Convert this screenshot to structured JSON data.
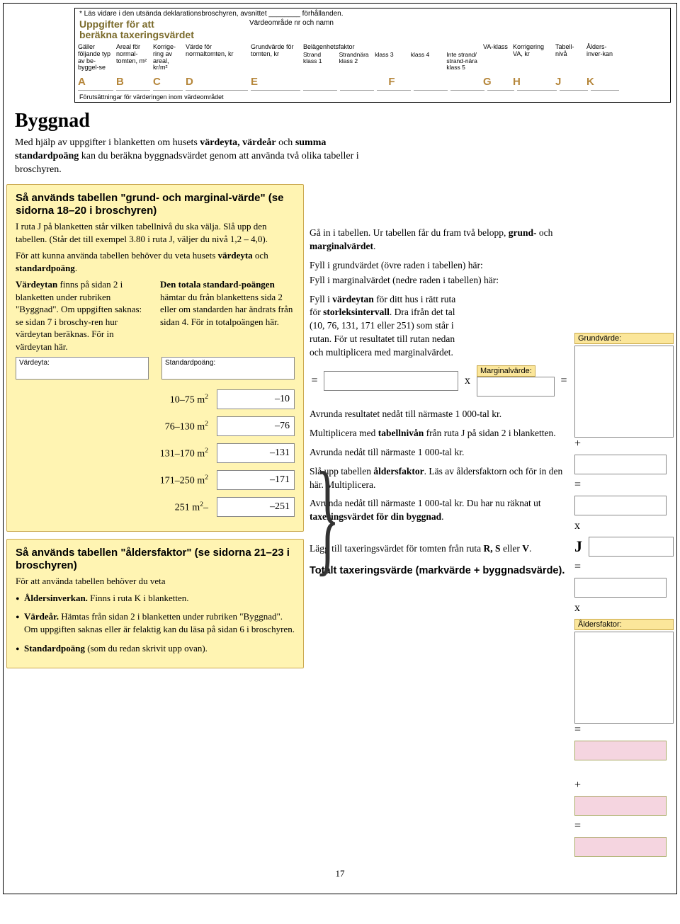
{
  "top": {
    "note": "* Läs vidare i den utsända deklarationsbroschyren, avsnittet ________ förhållanden.",
    "title_l1": "Uppgifter för att",
    "title_l2": "beräkna taxeringsvärdet",
    "vardeomrade": "Värdeområde nr och namn",
    "cols": {
      "a": "Gäller följande typ av be-byggel-se",
      "b": "Areal för normal-tomten, m²",
      "c": "Korrige-ring av areal, kr/m²",
      "d": "Värde för normaltomten, kr",
      "e": "Grundvärde för tomten, kr",
      "f_title": "Belägenhetsfaktor",
      "f1": "Strand",
      "f1b": "klass 1",
      "f2": "Strandnära",
      "f2b": "klass 2",
      "f3": "klass 3",
      "f4": "klass 4",
      "f5a": "Inte strand/ strand-nära",
      "f5b": "klass 5",
      "g": "VA-klass",
      "h": "Korrigering VA, kr",
      "j": "Tabell-nivå",
      "k": "Ålders-inver-kan"
    },
    "letters": [
      "A",
      "B",
      "C",
      "D",
      "E",
      "F",
      "G",
      "H",
      "J",
      "K"
    ],
    "footer": "Förutsättningar för värderingen inom värdeområdet"
  },
  "section_title": "Byggnad",
  "intro": "Med hjälp av uppgifter i blanketten om husets <b>värdeyta, värdeår</b> och <b>summa standardpoäng</b> kan du beräkna byggnadsvärdet genom att använda två olika tabeller i broschyren.",
  "box1": {
    "title": "Så används tabellen \"grund- och marginal-värde\" (se sidorna 18–20 i broschyren)",
    "p1": "I ruta J på blanketten står vilken tabellnivå du ska välja. Slå upp den tabellen. (Står det till exempel 3.80 i ruta J, väljer du nivå 1,2 – 4,0).",
    "p2": "För att kunna använda tabellen behöver du veta husets <b>värdeyta</b> och <b>standardpoäng</b>.",
    "left_p": "<b>Värdeytan</b> finns på sidan 2 i blanketten under rubriken \"Byggnad\". Om uppgiften saknas: se sidan 7 i broschy-ren hur värdeytan beräknas. För in värdeytan här.",
    "right_p": "<b>Den totala standard-poängen</b> hämtar du från blankettens sida 2 eller om standarden har ändrats från sidan 4. För in totalpoängen här.",
    "vardeyta_label": "Värdeyta:",
    "stdpoang_label": "Standardpoäng:",
    "rows": [
      {
        "label": "10–75 m²",
        "sub": "–10"
      },
      {
        "label": "76–130 m²",
        "sub": "–76"
      },
      {
        "label": "131–170 m²",
        "sub": "–131"
      },
      {
        "label": "171–250 m²",
        "sub": "–171"
      },
      {
        "label": "251 m²–",
        "sub": "–251"
      }
    ]
  },
  "box2": {
    "title": "Så används tabellen \"åldersfaktor\" (se sidorna 21–23 i broschyren)",
    "p1": "För att använda tabellen behöver du veta",
    "items": [
      "<b>Åldersinverkan.</b> Finns i ruta K i blanketten.",
      "<b>Värdeår.</b> Hämtas från sidan 2 i blanketten under rubriken \"Byggnad\". Om uppgiften saknas eller är felaktig kan du läsa på sidan 6 i broschyren.",
      "<b>Standardpoäng</b> (som du redan skrivit upp ovan)."
    ]
  },
  "right": {
    "p1": "Gå in i tabellen. Ur tabellen får du fram två belopp, <b>grund-</b> och <b>marginalvärdet</b>.",
    "p2": "Fyll i grundvärdet (övre raden i tabellen) här:",
    "p3": "Fyll i marginalvärdet (nedre raden i tabellen) här:",
    "p4": "Fyll i <b>värdeytan</b> för ditt hus i rätt ruta för <b>storleksintervall</b>. Dra ifrån det tal (10, 76, 131, 171 eller 251) som står i rutan. För ut resultatet till rutan nedan och multiplicera med marginalvärdet.",
    "marginal_label": "Marginalvärde:",
    "grund_label": "Grundvärde:",
    "p5": "Avrunda resultatet nedåt till närmaste 1 000-tal kr.",
    "p6": "Multiplicera med <b>tabellnivån</b> från ruta J på sidan 2 i blanketten.",
    "p7": "Avrunda nedåt till närmaste 1 000-tal kr.",
    "p8": "Slå upp tabellen <b>åldersfaktor</b>. Läs av åldersfaktorn och för in den här. Multiplicera.",
    "alders_label": "Åldersfaktor:",
    "p9": "Avrunda nedåt till närmaste 1 000-tal kr. Du har nu räknat ut <b>taxeringsvärdet för din byggnad</b>.",
    "p10": "Lägg till taxeringsvärdet för tomten från ruta <b>R, S</b> eller <b>V</b>.",
    "final": "Totalt taxeringsvärde (markvärde + byggnadsvärde).",
    "eq": "=",
    "x": "x",
    "plus": "+",
    "j": "J"
  },
  "page_num": "17"
}
